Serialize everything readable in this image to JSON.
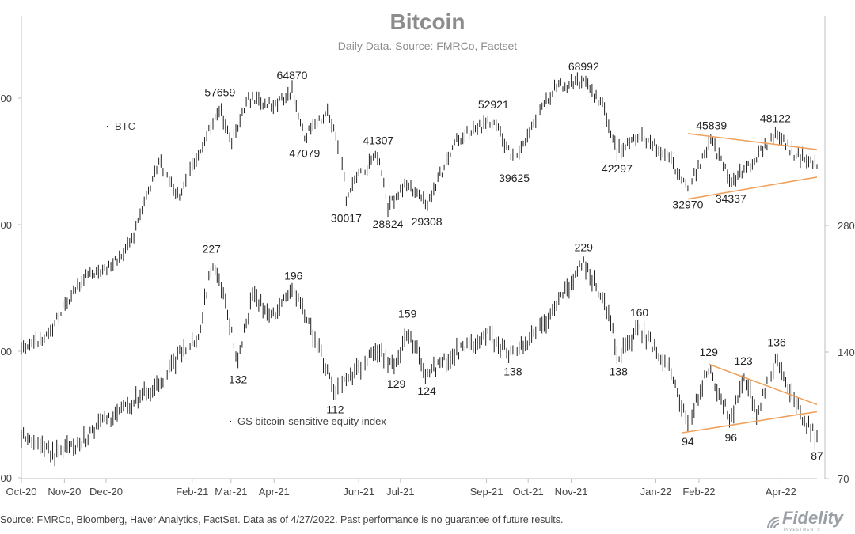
{
  "header": {
    "title": "Bitcoin",
    "subtitle": "Daily Data. Source: FMRCo, Factset"
  },
  "footer": {
    "source": "Source: FMRCo, Bloomberg, Haver Analytics, FactSet. Data as of 4/27/2022. Past performance is no guarantee of future results.",
    "logo_text": "Fidelity",
    "logo_subtext": "INVESTMENTS"
  },
  "chart_data": {
    "type": "line",
    "title": "Bitcoin",
    "subtitle": "Daily Data. Source: FMRCo, Factset",
    "x_tick_labels": [
      "Oct-20",
      "Nov-20",
      "Dec-20",
      "Feb-21",
      "Mar-21",
      "Apr-21",
      "Jun-21",
      "Jul-21",
      "Sep-21",
      "Oct-21",
      "Nov-21",
      "Jan-22",
      "Feb-22",
      "Apr-22"
    ],
    "x_range": [
      "2020-10-01",
      "2022-04-27"
    ],
    "left_axis": {
      "ticks": [
        "000",
        "000",
        "000",
        "000"
      ],
      "scale": "log"
    },
    "right_axis": {
      "ticks": [
        "280",
        "140",
        "70"
      ],
      "values": [
        280,
        140,
        70
      ],
      "scale": "log",
      "ylim": [
        70,
        560
      ]
    },
    "grid": false,
    "series": [
      {
        "name": "BTC",
        "color": "#222222",
        "points": [
          [
            "2020-10-01",
            10600
          ],
          [
            "2020-10-20",
            11900
          ],
          [
            "2020-11-05",
            15500
          ],
          [
            "2020-11-20",
            18400
          ],
          [
            "2020-12-05",
            19200
          ],
          [
            "2020-12-20",
            23000
          ],
          [
            "2021-01-08",
            40000
          ],
          [
            "2021-01-22",
            31000
          ],
          [
            "2021-02-10",
            46000
          ],
          [
            "2021-02-21",
            57659
          ],
          [
            "2021-03-01",
            45000
          ],
          [
            "2021-03-13",
            61000
          ],
          [
            "2021-04-02",
            58900
          ],
          [
            "2021-04-14",
            64870
          ],
          [
            "2021-04-23",
            47079
          ],
          [
            "2021-05-10",
            56000
          ],
          [
            "2021-05-20",
            40000
          ],
          [
            "2021-05-23",
            30017
          ],
          [
            "2021-05-30",
            35000
          ],
          [
            "2021-06-15",
            41307
          ],
          [
            "2021-06-22",
            28824
          ],
          [
            "2021-07-05",
            34000
          ],
          [
            "2021-07-20",
            29308
          ],
          [
            "2021-08-10",
            46000
          ],
          [
            "2021-09-06",
            52921
          ],
          [
            "2021-09-21",
            39625
          ],
          [
            "2021-10-05",
            52000
          ],
          [
            "2021-10-20",
            66000
          ],
          [
            "2021-11-10",
            68992
          ],
          [
            "2021-11-25",
            57000
          ],
          [
            "2021-12-04",
            42297
          ],
          [
            "2021-12-20",
            48000
          ],
          [
            "2022-01-10",
            41000
          ],
          [
            "2022-01-24",
            32970
          ],
          [
            "2022-02-10",
            45839
          ],
          [
            "2022-02-24",
            34337
          ],
          [
            "2022-03-10",
            39000
          ],
          [
            "2022-03-28",
            48122
          ],
          [
            "2022-04-10",
            42000
          ],
          [
            "2022-04-27",
            38500
          ]
        ],
        "annotations": [
          {
            "date": "2021-02-21",
            "value": 57659,
            "label": "57659",
            "pos": "above"
          },
          {
            "date": "2021-04-14",
            "value": 64870,
            "label": "64870",
            "pos": "above"
          },
          {
            "date": "2021-04-23",
            "value": 47079,
            "label": "47079",
            "pos": "below"
          },
          {
            "date": "2021-05-23",
            "value": 30017,
            "label": "30017",
            "pos": "below"
          },
          {
            "date": "2021-06-15",
            "value": 41307,
            "label": "41307",
            "pos": "above"
          },
          {
            "date": "2021-06-22",
            "value": 28824,
            "label": "28824",
            "pos": "below"
          },
          {
            "date": "2021-07-20",
            "value": 29308,
            "label": "29308",
            "pos": "below"
          },
          {
            "date": "2021-09-06",
            "value": 52921,
            "label": "52921",
            "pos": "above"
          },
          {
            "date": "2021-09-21",
            "value": 39625,
            "label": "39625",
            "pos": "below"
          },
          {
            "date": "2021-11-10",
            "value": 68992,
            "label": "68992",
            "pos": "above"
          },
          {
            "date": "2021-12-04",
            "value": 42297,
            "label": "42297",
            "pos": "below"
          },
          {
            "date": "2022-01-24",
            "value": 32970,
            "label": "32970",
            "pos": "below"
          },
          {
            "date": "2022-02-10",
            "value": 45839,
            "label": "45839",
            "pos": "above"
          },
          {
            "date": "2022-02-24",
            "value": 34337,
            "label": "34337",
            "pos": "below"
          },
          {
            "date": "2022-03-28",
            "value": 48122,
            "label": "48122",
            "pos": "above"
          }
        ]
      },
      {
        "name": "GS bitcoin-sensitive equity index",
        "color": "#222222",
        "points": [
          [
            "2020-10-01",
            88
          ],
          [
            "2020-10-25",
            80
          ],
          [
            "2020-11-10",
            84
          ],
          [
            "2020-11-30",
            96
          ],
          [
            "2020-12-20",
            106
          ],
          [
            "2021-01-10",
            120
          ],
          [
            "2021-01-25",
            142
          ],
          [
            "2021-02-05",
            150
          ],
          [
            "2021-02-15",
            227
          ],
          [
            "2021-02-25",
            185
          ],
          [
            "2021-03-06",
            132
          ],
          [
            "2021-03-17",
            196
          ],
          [
            "2021-03-28",
            168
          ],
          [
            "2021-04-15",
            196
          ],
          [
            "2021-05-01",
            150
          ],
          [
            "2021-05-15",
            112
          ],
          [
            "2021-06-01",
            129
          ],
          [
            "2021-06-15",
            141
          ],
          [
            "2021-06-28",
            129
          ],
          [
            "2021-07-06",
            159
          ],
          [
            "2021-07-20",
            124
          ],
          [
            "2021-08-10",
            140
          ],
          [
            "2021-09-01",
            154
          ],
          [
            "2021-09-20",
            138
          ],
          [
            "2021-10-10",
            160
          ],
          [
            "2021-10-30",
            200
          ],
          [
            "2021-11-10",
            229
          ],
          [
            "2021-11-25",
            185
          ],
          [
            "2021-12-05",
            138
          ],
          [
            "2021-12-20",
            160
          ],
          [
            "2022-01-10",
            130
          ],
          [
            "2022-01-24",
            94
          ],
          [
            "2022-02-08",
            129
          ],
          [
            "2022-02-24",
            96
          ],
          [
            "2022-03-05",
            123
          ],
          [
            "2022-03-15",
            100
          ],
          [
            "2022-03-29",
            136
          ],
          [
            "2022-04-15",
            100
          ],
          [
            "2022-04-27",
            87
          ]
        ],
        "annotations": [
          {
            "date": "2021-02-15",
            "value": 227,
            "label": "227",
            "pos": "above"
          },
          {
            "date": "2021-03-06",
            "value": 132,
            "label": "132",
            "pos": "below"
          },
          {
            "date": "2021-04-15",
            "value": 196,
            "label": "196",
            "pos": "above"
          },
          {
            "date": "2021-05-15",
            "value": 112,
            "label": "112",
            "pos": "below"
          },
          {
            "date": "2021-06-28",
            "value": 129,
            "label": "129",
            "pos": "below"
          },
          {
            "date": "2021-07-06",
            "value": 159,
            "label": "159",
            "pos": "above"
          },
          {
            "date": "2021-07-20",
            "value": 124,
            "label": "124",
            "pos": "below"
          },
          {
            "date": "2021-09-20",
            "value": 138,
            "label": "138",
            "pos": "below"
          },
          {
            "date": "2021-11-10",
            "value": 229,
            "label": "229",
            "pos": "above"
          },
          {
            "date": "2021-12-05",
            "value": 138,
            "label": "138",
            "pos": "below"
          },
          {
            "date": "2021-12-20",
            "value": 160,
            "label": "160",
            "pos": "above"
          },
          {
            "date": "2022-01-24",
            "value": 94,
            "label": "94",
            "pos": "below"
          },
          {
            "date": "2022-02-08",
            "value": 129,
            "label": "129",
            "pos": "above"
          },
          {
            "date": "2022-02-24",
            "value": 96,
            "label": "96",
            "pos": "below"
          },
          {
            "date": "2022-03-05",
            "value": 123,
            "label": "123",
            "pos": "above"
          },
          {
            "date": "2022-03-29",
            "value": 136,
            "label": "136",
            "pos": "above"
          },
          {
            "date": "2022-04-27",
            "value": 87,
            "label": "87",
            "pos": "below"
          }
        ]
      }
    ],
    "trendlines": [
      {
        "name": "BTC upper",
        "series": "BTC",
        "from": [
          "2022-01-24",
          48000
        ],
        "to": [
          "2022-04-27",
          43000
        ],
        "color": "#f0a15c"
      },
      {
        "name": "BTC lower",
        "series": "BTC",
        "from": [
          "2022-01-24",
          30500
        ],
        "to": [
          "2022-04-27",
          35500
        ],
        "color": "#f0a15c"
      },
      {
        "name": "GS upper",
        "series": "GS bitcoin-sensitive equity index",
        "from": [
          "2022-02-08",
          131
        ],
        "to": [
          "2022-04-27",
          105
        ],
        "color": "#f0a15c"
      },
      {
        "name": "GS lower",
        "series": "GS bitcoin-sensitive equity index",
        "from": [
          "2022-01-20",
          90
        ],
        "to": [
          "2022-04-27",
          101
        ],
        "color": "#f0a15c"
      }
    ],
    "legend": [
      {
        "label": "BTC",
        "placement": "top-left"
      },
      {
        "label": "GS bitcoin-sensitive equity index",
        "placement": "bottom-left"
      }
    ],
    "colors": {
      "trend": "#f0a15c",
      "bars": "#222222",
      "title": "#8c8c8c",
      "axis": "#bfbfbf"
    }
  }
}
